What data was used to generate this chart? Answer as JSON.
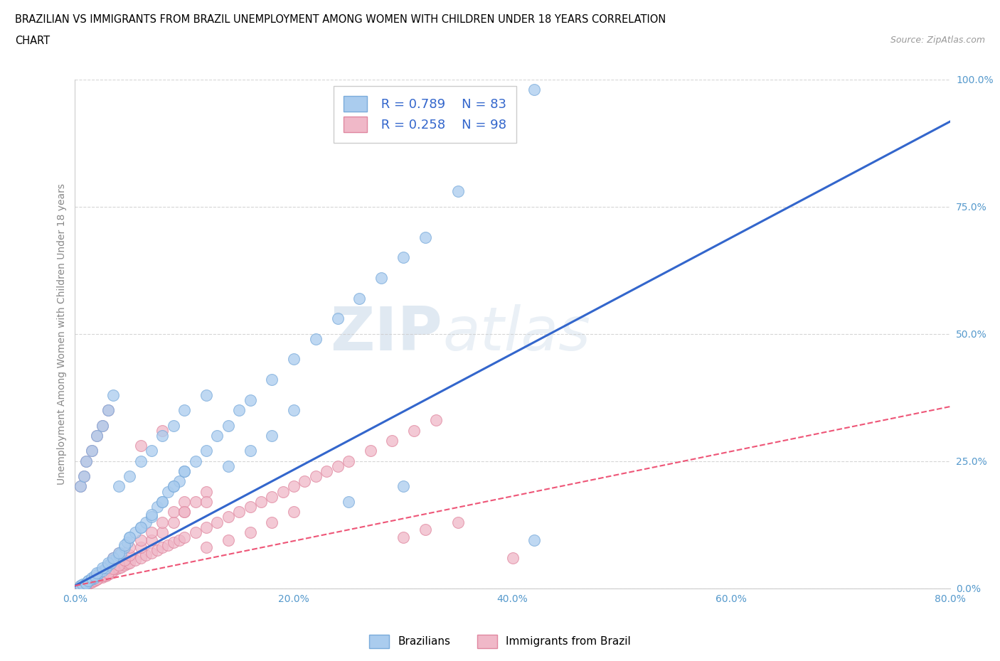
{
  "title_line1": "BRAZILIAN VS IMMIGRANTS FROM BRAZIL UNEMPLOYMENT AMONG WOMEN WITH CHILDREN UNDER 18 YEARS CORRELATION",
  "title_line2": "CHART",
  "source": "Source: ZipAtlas.com",
  "ylabel": "Unemployment Among Women with Children Under 18 years",
  "xlim": [
    0.0,
    0.8
  ],
  "ylim": [
    0.0,
    1.0
  ],
  "xtick_labels": [
    "0.0%",
    "20.0%",
    "40.0%",
    "60.0%",
    "80.0%"
  ],
  "xtick_values": [
    0.0,
    0.2,
    0.4,
    0.6,
    0.8
  ],
  "ytick_labels": [
    "0.0%",
    "25.0%",
    "50.0%",
    "75.0%",
    "100.0%"
  ],
  "ytick_values": [
    0.0,
    0.25,
    0.5,
    0.75,
    1.0
  ],
  "watermark_ZIP": "ZIP",
  "watermark_atlas": "atlas",
  "blue_color": "#aaccee",
  "blue_edge": "#7aabdb",
  "pink_color": "#f0b8c8",
  "pink_edge": "#e088a0",
  "blue_line_color": "#3366cc",
  "pink_line_color": "#ee5577",
  "legend_R_blue": "0.789",
  "legend_N_blue": "83",
  "legend_R_pink": "0.258",
  "legend_N_pink": "98",
  "blue_slope": 1.14,
  "blue_intercept": 0.005,
  "pink_slope": 0.44,
  "pink_intercept": 0.005,
  "grid_color": "#cccccc",
  "axis_label_color": "#5599cc",
  "legend_text_color": "#3366cc",
  "blue_points_x": [
    0.005,
    0.008,
    0.01,
    0.012,
    0.015,
    0.018,
    0.02,
    0.022,
    0.025,
    0.028,
    0.03,
    0.033,
    0.035,
    0.038,
    0.04,
    0.042,
    0.045,
    0.048,
    0.05,
    0.055,
    0.06,
    0.065,
    0.07,
    0.075,
    0.08,
    0.085,
    0.09,
    0.095,
    0.1,
    0.11,
    0.12,
    0.13,
    0.14,
    0.15,
    0.16,
    0.18,
    0.2,
    0.22,
    0.24,
    0.26,
    0.28,
    0.3,
    0.32,
    0.35,
    0.005,
    0.007,
    0.01,
    0.012,
    0.015,
    0.018,
    0.02,
    0.025,
    0.03,
    0.035,
    0.04,
    0.045,
    0.05,
    0.06,
    0.07,
    0.08,
    0.09,
    0.1,
    0.005,
    0.008,
    0.01,
    0.015,
    0.02,
    0.025,
    0.03,
    0.035,
    0.04,
    0.05,
    0.06,
    0.07,
    0.08,
    0.09,
    0.1,
    0.12,
    0.14,
    0.16,
    0.18,
    0.2,
    0.25,
    0.3,
    0.42
  ],
  "blue_points_y": [
    0.005,
    0.008,
    0.01,
    0.015,
    0.018,
    0.02,
    0.025,
    0.03,
    0.035,
    0.04,
    0.045,
    0.05,
    0.055,
    0.06,
    0.065,
    0.07,
    0.08,
    0.09,
    0.1,
    0.11,
    0.12,
    0.13,
    0.14,
    0.16,
    0.17,
    0.19,
    0.2,
    0.21,
    0.23,
    0.25,
    0.27,
    0.3,
    0.32,
    0.35,
    0.37,
    0.41,
    0.45,
    0.49,
    0.53,
    0.57,
    0.61,
    0.65,
    0.69,
    0.78,
    0.005,
    0.008,
    0.01,
    0.015,
    0.02,
    0.025,
    0.03,
    0.04,
    0.05,
    0.06,
    0.07,
    0.085,
    0.1,
    0.12,
    0.145,
    0.17,
    0.2,
    0.23,
    0.2,
    0.22,
    0.25,
    0.27,
    0.3,
    0.32,
    0.35,
    0.38,
    0.2,
    0.22,
    0.25,
    0.27,
    0.3,
    0.32,
    0.35,
    0.38,
    0.24,
    0.27,
    0.3,
    0.35,
    0.17,
    0.2,
    0.095
  ],
  "pink_points_x": [
    0.005,
    0.007,
    0.009,
    0.01,
    0.012,
    0.014,
    0.016,
    0.018,
    0.02,
    0.022,
    0.025,
    0.028,
    0.03,
    0.033,
    0.035,
    0.038,
    0.04,
    0.042,
    0.045,
    0.048,
    0.05,
    0.055,
    0.06,
    0.065,
    0.07,
    0.075,
    0.08,
    0.085,
    0.09,
    0.095,
    0.1,
    0.11,
    0.12,
    0.13,
    0.14,
    0.15,
    0.16,
    0.17,
    0.18,
    0.19,
    0.2,
    0.21,
    0.22,
    0.23,
    0.24,
    0.25,
    0.27,
    0.29,
    0.31,
    0.33,
    0.005,
    0.008,
    0.01,
    0.012,
    0.015,
    0.018,
    0.02,
    0.025,
    0.03,
    0.035,
    0.04,
    0.045,
    0.05,
    0.06,
    0.07,
    0.08,
    0.09,
    0.1,
    0.11,
    0.12,
    0.005,
    0.008,
    0.01,
    0.015,
    0.02,
    0.025,
    0.03,
    0.035,
    0.04,
    0.05,
    0.06,
    0.07,
    0.08,
    0.09,
    0.1,
    0.12,
    0.14,
    0.16,
    0.18,
    0.2,
    0.06,
    0.08,
    0.1,
    0.12,
    0.3,
    0.32,
    0.35,
    0.4
  ],
  "pink_points_y": [
    0.003,
    0.005,
    0.007,
    0.008,
    0.01,
    0.012,
    0.014,
    0.016,
    0.018,
    0.02,
    0.022,
    0.025,
    0.028,
    0.03,
    0.035,
    0.038,
    0.04,
    0.042,
    0.045,
    0.048,
    0.05,
    0.055,
    0.06,
    0.065,
    0.07,
    0.075,
    0.08,
    0.085,
    0.09,
    0.095,
    0.1,
    0.11,
    0.12,
    0.13,
    0.14,
    0.15,
    0.16,
    0.17,
    0.18,
    0.19,
    0.2,
    0.21,
    0.22,
    0.23,
    0.24,
    0.25,
    0.27,
    0.29,
    0.31,
    0.33,
    0.003,
    0.005,
    0.007,
    0.01,
    0.012,
    0.015,
    0.018,
    0.025,
    0.03,
    0.038,
    0.045,
    0.055,
    0.065,
    0.08,
    0.095,
    0.11,
    0.13,
    0.15,
    0.17,
    0.19,
    0.2,
    0.22,
    0.25,
    0.27,
    0.3,
    0.32,
    0.35,
    0.06,
    0.07,
    0.08,
    0.095,
    0.11,
    0.13,
    0.15,
    0.17,
    0.08,
    0.095,
    0.11,
    0.13,
    0.15,
    0.28,
    0.31,
    0.15,
    0.17,
    0.1,
    0.115,
    0.13,
    0.06
  ]
}
